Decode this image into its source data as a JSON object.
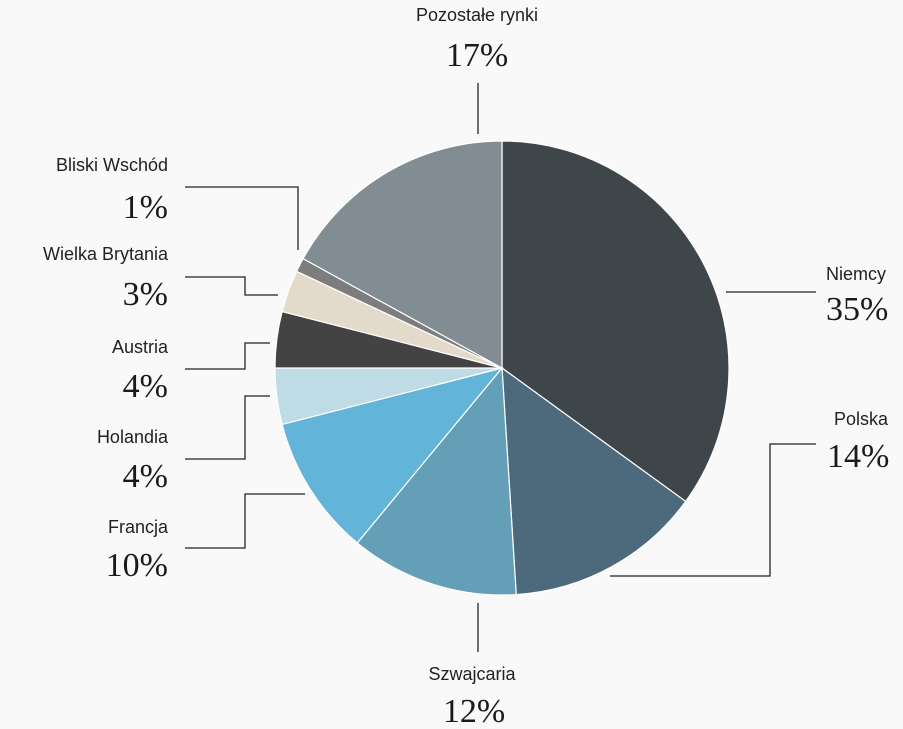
{
  "chart_data": {
    "type": "pie",
    "start_angle_deg": 0,
    "direction": "clockwise",
    "slices": [
      {
        "label": "Niemcy",
        "value": 35,
        "value_label": "35%",
        "color": "#3e4649"
      },
      {
        "label": "Polska",
        "value": 14,
        "value_label": "14%",
        "color": "#4d6a7c"
      },
      {
        "label": "Szwajcaria",
        "value": 12,
        "value_label": "12%",
        "color": "#649fb8"
      },
      {
        "label": "Francja",
        "value": 10,
        "value_label": "10%",
        "color": "#62b5d9"
      },
      {
        "label": "Holandia",
        "value": 4,
        "value_label": "4%",
        "color": "#bedbe6"
      },
      {
        "label": "Austria",
        "value": 4,
        "value_label": "4%",
        "color": "#434343"
      },
      {
        "label": "Wielka Brytania",
        "value": 3,
        "value_label": "3%",
        "color": "#e3dacb"
      },
      {
        "label": "Bliski Wschód",
        "value": 1,
        "value_label": "1%",
        "color": "#7d7d7d"
      },
      {
        "label": "Pozostałe rynki",
        "value": 17,
        "value_label": "17%",
        "color": "#818d92"
      }
    ]
  }
}
